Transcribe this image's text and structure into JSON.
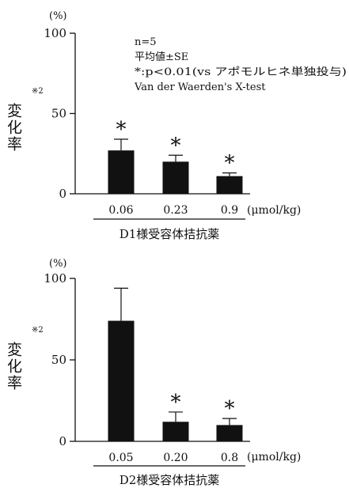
{
  "chart_data": [
    {
      "type": "bar",
      "unit_label": "(%)",
      "ylabel": "変化率",
      "ylabel_note": "※2",
      "ylim": [
        0,
        100
      ],
      "yticks": [
        "0",
        "50",
        "100"
      ],
      "categories": [
        "0.06",
        "0.23",
        "0.9"
      ],
      "x_unit": "(μmol/kg)",
      "xlabel": "D1様受容体拮抗薬",
      "values": [
        27,
        20,
        11
      ],
      "errors": [
        7,
        4,
        2
      ],
      "significance": [
        "*",
        "*",
        "*"
      ],
      "annotations": [
        "n=5",
        "平均値±SE",
        "*:p<0.01(vs アポモルヒネ単独投与)",
        "Van der Waerden's X-test"
      ],
      "grid": false
    },
    {
      "type": "bar",
      "unit_label": "(%)",
      "ylabel": "変化率",
      "ylabel_note": "※2",
      "ylim": [
        0,
        100
      ],
      "yticks": [
        "0",
        "50",
        "100"
      ],
      "categories": [
        "0.05",
        "0.20",
        "0.8"
      ],
      "x_unit": "(μmol/kg)",
      "xlabel": "D2様受容体拮抗薬",
      "values": [
        74,
        12,
        10
      ],
      "errors": [
        20,
        6,
        4
      ],
      "significance": [
        "",
        "*",
        "*"
      ],
      "annotations": [],
      "grid": false
    }
  ]
}
